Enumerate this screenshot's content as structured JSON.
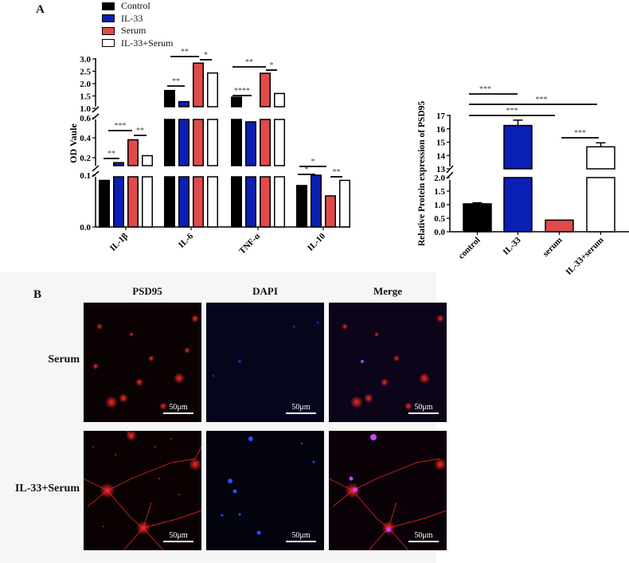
{
  "figure": {
    "panel_a_label": "A",
    "panel_b_label": "B"
  },
  "legend": {
    "items": [
      {
        "label": "Control",
        "color": "#000000"
      },
      {
        "label": "IL-33",
        "color": "#0a1fb5"
      },
      {
        "label": "Serum",
        "color": "#e04a4a"
      },
      {
        "label": "IL-33+Serum",
        "color": "#ffffff"
      }
    ]
  },
  "chart_data": [
    {
      "type": "bar",
      "title": "",
      "xlabel": "",
      "ylabel": "OD Vaule",
      "axis_breaks": [
        [
          0.1,
          0.2
        ],
        [
          0.6,
          1.0
        ]
      ],
      "yticks": [
        "0.0",
        "0.1",
        "0.2",
        "0.4",
        "0.6",
        "1.0",
        "1.5",
        "2.0",
        "2.5",
        "3.0"
      ],
      "ylim": [
        0,
        3.0
      ],
      "categories": [
        "IL-1β",
        "IL-6",
        "TNF-α",
        "IL-10"
      ],
      "series": [
        {
          "name": "Control",
          "color": "#000000",
          "values": [
            0.09,
            1.72,
            1.45,
            0.08
          ]
        },
        {
          "name": "IL-33",
          "color": "#0a1fb5",
          "values": [
            0.15,
            1.27,
            0.56,
            0.1
          ]
        },
        {
          "name": "Serum",
          "color": "#e04a4a",
          "values": [
            0.38,
            2.83,
            2.42,
            0.06
          ]
        },
        {
          "name": "IL-33+Serum",
          "color": "#ffffff",
          "values": [
            0.22,
            2.43,
            1.6,
            0.09
          ]
        }
      ],
      "significance": [
        {
          "group": "IL-1β",
          "pair": [
            "Control",
            "IL-33"
          ],
          "label": "**"
        },
        {
          "group": "IL-1β",
          "pair": [
            "Control",
            "Serum"
          ],
          "label": "***"
        },
        {
          "group": "IL-1β",
          "pair": [
            "Serum",
            "IL-33+Serum"
          ],
          "label": "**"
        },
        {
          "group": "IL-6",
          "pair": [
            "Control",
            "IL-33"
          ],
          "label": "**"
        },
        {
          "group": "IL-6",
          "pair": [
            "Control",
            "Serum"
          ],
          "label": "**"
        },
        {
          "group": "IL-6",
          "pair": [
            "Serum",
            "IL-33+Serum"
          ],
          "label": "*"
        },
        {
          "group": "TNF-α",
          "pair": [
            "Control",
            "IL-33"
          ],
          "label": "****"
        },
        {
          "group": "TNF-α",
          "pair": [
            "Control",
            "Serum"
          ],
          "label": "**"
        },
        {
          "group": "TNF-α",
          "pair": [
            "Serum",
            "IL-33+Serum"
          ],
          "label": "*"
        },
        {
          "group": "IL-10",
          "pair": [
            "Control",
            "IL-33"
          ],
          "label": "*"
        },
        {
          "group": "IL-10",
          "pair": [
            "Control",
            "Serum"
          ],
          "label": "*"
        },
        {
          "group": "IL-10",
          "pair": [
            "Serum",
            "IL-33+Serum"
          ],
          "label": "**"
        }
      ],
      "legend_position": "top"
    },
    {
      "type": "bar",
      "title": "",
      "xlabel": "",
      "ylabel": "Relative Protein expression of PSD95",
      "axis_breaks": [
        [
          2.0,
          13
        ]
      ],
      "yticks": [
        "0.0",
        "0.5",
        "1.0",
        "1.5",
        "2.0",
        "13",
        "14",
        "15",
        "16",
        "17"
      ],
      "ylim": [
        0,
        17
      ],
      "categories": [
        "control",
        "IL-33",
        "serum",
        "IL-33+serum"
      ],
      "values": [
        1.03,
        16.25,
        0.43,
        14.65
      ],
      "colors": [
        "#000000",
        "#0a1fb5",
        "#e04a4a",
        "#ffffff"
      ],
      "significance": [
        {
          "pair": [
            "control",
            "IL-33"
          ],
          "label": "***"
        },
        {
          "pair": [
            "control",
            "IL-33+serum"
          ],
          "label": "***"
        },
        {
          "pair": [
            "control",
            "serum"
          ],
          "label": "***"
        },
        {
          "pair": [
            "serum",
            "IL-33+serum"
          ],
          "label": "***"
        }
      ]
    }
  ],
  "panel_b": {
    "columns": [
      "PSD95",
      "DAPI",
      "Merge"
    ],
    "rows": [
      "Serum",
      "IL-33+Serum"
    ],
    "scale_bar": "50μm"
  }
}
